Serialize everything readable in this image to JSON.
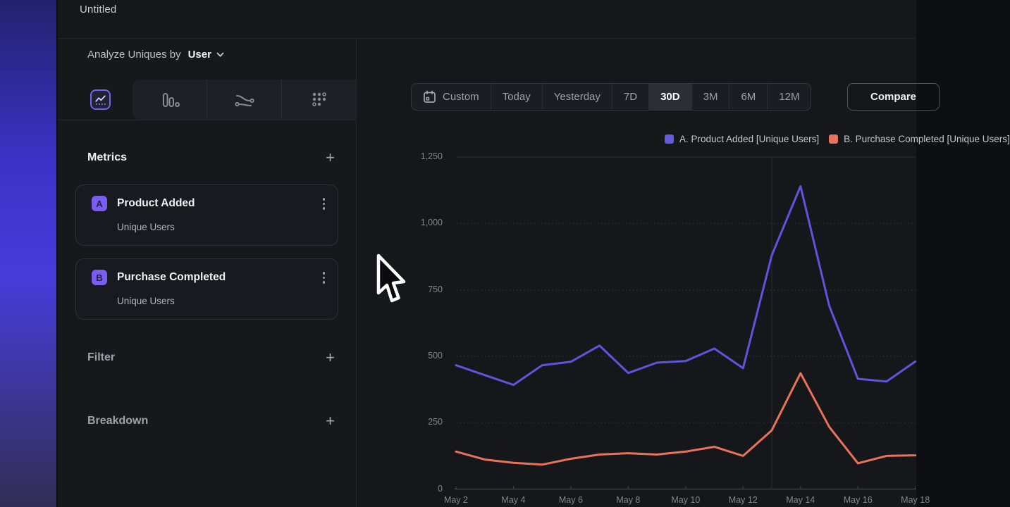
{
  "window": {
    "title": "Untitled"
  },
  "sidebar": {
    "analyze": {
      "label": "Analyze Uniques by",
      "value": "User",
      "chevron_icon": "chevron-down-icon"
    },
    "chart_tabs": [
      {
        "icon": "line-chart-icon",
        "selected": true
      },
      {
        "icon": "bar-chart-icon",
        "selected": false
      },
      {
        "icon": "flow-chart-icon",
        "selected": false
      },
      {
        "icon": "grid-dots-icon",
        "selected": false
      }
    ],
    "metrics": {
      "header": "Metrics",
      "add_icon": "+",
      "items": [
        {
          "badge": "A",
          "name": "Product Added",
          "subtitle": "Unique Users"
        },
        {
          "badge": "B",
          "name": "Purchase Completed",
          "subtitle": "Unique Users"
        }
      ]
    },
    "filter": {
      "header": "Filter",
      "add_icon": "+"
    },
    "breakdown": {
      "header": "Breakdown",
      "add_icon": "+"
    }
  },
  "toolbar": {
    "ranges": [
      "Custom",
      "Today",
      "Yesterday",
      "7D",
      "30D",
      "3M",
      "6M",
      "12M"
    ],
    "selected": "30D",
    "custom_icon": "calendar-icon",
    "compare_label": "Compare"
  },
  "legend": [
    {
      "label": "A. Product Added [Unique Users]",
      "color": "#6559e0"
    },
    {
      "label": "B. Purchase Completed [Unique Users]",
      "color": "#e8735a"
    }
  ],
  "chart_data": {
    "type": "line",
    "x": [
      "May 2",
      "May 3",
      "May 4",
      "May 5",
      "May 6",
      "May 7",
      "May 8",
      "May 9",
      "May 10",
      "May 11",
      "May 12",
      "May 13",
      "May 14",
      "May 15",
      "May 16",
      "May 17",
      "May 18"
    ],
    "xtick_labels": [
      "May 2",
      "May 4",
      "May 6",
      "May 8",
      "May 10",
      "May 12",
      "May 14",
      "May 16",
      "May 18"
    ],
    "series": [
      {
        "name": "A. Product Added [Unique Users]",
        "color": "#5f55dd",
        "values": [
          466,
          429,
          392,
          466,
          479,
          540,
          437,
          476,
          482,
          529,
          455,
          880,
          1140,
          690,
          415,
          405,
          480
        ]
      },
      {
        "name": "B. Purchase Completed [Unique Users]",
        "color": "#e8735a",
        "values": [
          141,
          111,
          99,
          92,
          114,
          130,
          135,
          130,
          141,
          159,
          125,
          221,
          436,
          234,
          97,
          125,
          127
        ]
      }
    ],
    "ylim": [
      0,
      1250
    ],
    "yticks": [
      0,
      250,
      500,
      750,
      1000,
      1250
    ],
    "grid": "horizontal-dotted",
    "legend_position": "top-right",
    "vertical_gridline_at": "May 13"
  }
}
